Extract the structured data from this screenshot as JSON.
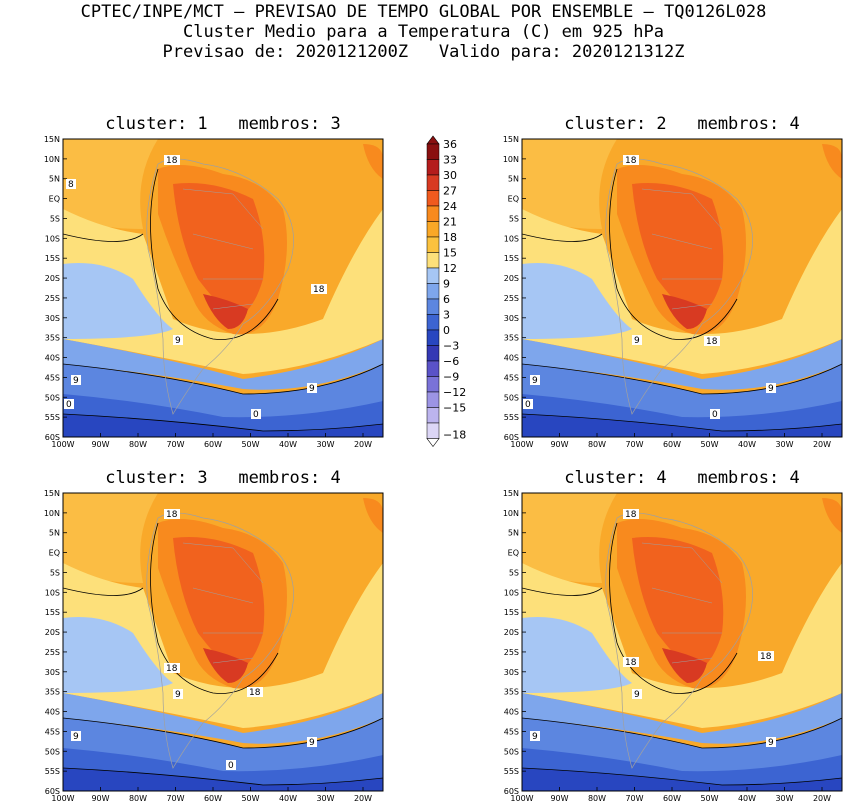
{
  "header": {
    "line1": "CPTEC/INPE/MCT – PREVISAO DE TEMPO GLOBAL POR ENSEMBLE – TQ0126L028",
    "line2": "Cluster Medio para a Temperatura (C) em 925 hPa",
    "line3": "Previsao de: 2020121200Z   Valido para: 2020121312Z"
  },
  "axes": {
    "lat_labels": [
      "15N",
      "10N",
      "5N",
      "EQ",
      "5S",
      "10S",
      "15S",
      "20S",
      "25S",
      "30S",
      "35S",
      "40S",
      "45S",
      "50S",
      "55S",
      "60S"
    ],
    "lon_labels": [
      "100W",
      "90W",
      "80W",
      "70W",
      "60W",
      "50W",
      "40W",
      "30W",
      "20W"
    ]
  },
  "colorbar": {
    "labels": [
      "36",
      "33",
      "30",
      "27",
      "24",
      "21",
      "18",
      "15",
      "12",
      "9",
      "6",
      "3",
      "0",
      "-3",
      "-6",
      "-9",
      "-12",
      "-15",
      "-18"
    ],
    "colors": [
      "#8a1010",
      "#b41c1c",
      "#d83a22",
      "#f05a1e",
      "#f88a1e",
      "#faa826",
      "#fbc23e",
      "#fde07a",
      "#a6c6f4",
      "#7ea6ec",
      "#5c86e0",
      "#3c64d2",
      "#2846c0",
      "#3438b4",
      "#5a52c8",
      "#7a72d8",
      "#9c94e4",
      "#bcb4ee",
      "#dcd6f6"
    ]
  },
  "panels": [
    {
      "title": "cluster: 1   membros: 3",
      "labels": [
        "18",
        "8",
        "18",
        "9",
        "9",
        "9",
        "0",
        "0"
      ]
    },
    {
      "title": "cluster: 2   membros: 4",
      "labels": [
        "18",
        "18",
        "9",
        "9",
        "9",
        "0",
        "0"
      ]
    },
    {
      "title": "cluster: 3   membros: 4",
      "labels": [
        "18",
        "18",
        "18",
        "9",
        "9",
        "9",
        "0"
      ]
    },
    {
      "title": "cluster: 4   membros: 4",
      "labels": [
        "18",
        "18",
        "18",
        "9",
        "9",
        "9"
      ]
    }
  ]
}
